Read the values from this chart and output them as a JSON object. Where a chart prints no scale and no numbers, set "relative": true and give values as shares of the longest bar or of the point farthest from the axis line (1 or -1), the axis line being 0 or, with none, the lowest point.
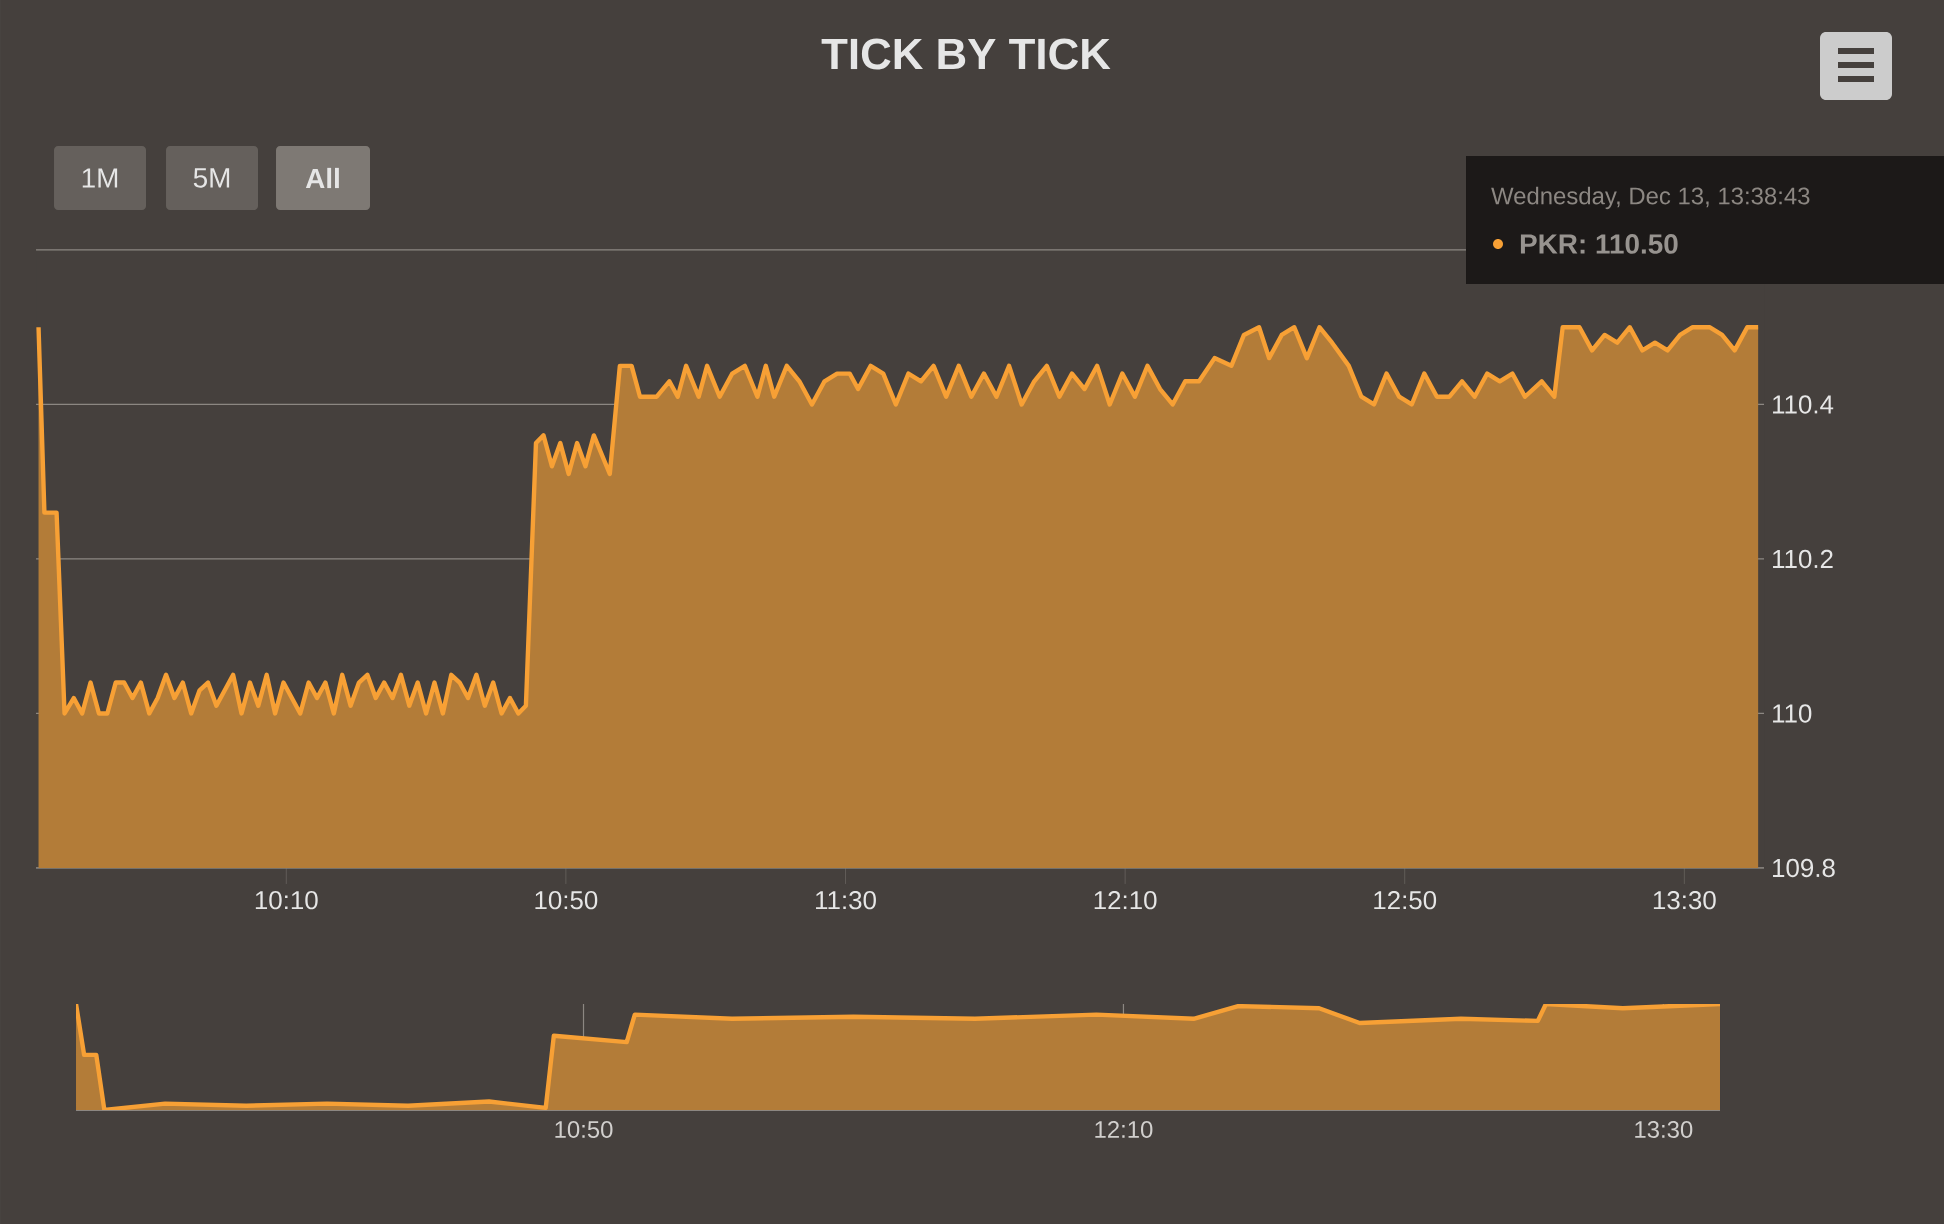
{
  "chart_data": [
    {
      "type": "area",
      "title": "TICK BY TICK",
      "annotations": [
        "1M",
        "5M",
        "All",
        "Wednesday, Dec 13, 13:38:43",
        "PKR: 110.50"
      ],
      "x": [
        9.576,
        9.59,
        9.619,
        9.638,
        9.66,
        9.68,
        9.7,
        9.72,
        9.74,
        9.76,
        9.78,
        9.8,
        9.82,
        9.84,
        9.86,
        9.88,
        9.9,
        9.92,
        9.94,
        9.96,
        9.98,
        10.0,
        10.02,
        10.04,
        10.06,
        10.08,
        10.1,
        10.12,
        10.14,
        10.16,
        10.18,
        10.2,
        10.22,
        10.24,
        10.26,
        10.28,
        10.3,
        10.32,
        10.34,
        10.36,
        10.38,
        10.4,
        10.42,
        10.44,
        10.46,
        10.48,
        10.5,
        10.52,
        10.54,
        10.56,
        10.58,
        10.6,
        10.62,
        10.64,
        10.66,
        10.68,
        10.7,
        10.72,
        10.738,
        10.762,
        10.78,
        10.8,
        10.82,
        10.84,
        10.86,
        10.88,
        10.9,
        10.938,
        10.962,
        10.99,
        11.01,
        11.05,
        11.08,
        11.1,
        11.12,
        11.15,
        11.17,
        11.2,
        11.23,
        11.26,
        11.29,
        11.31,
        11.33,
        11.36,
        11.39,
        11.42,
        11.45,
        11.48,
        11.51,
        11.53,
        11.56,
        11.59,
        11.62,
        11.65,
        11.68,
        11.71,
        11.74,
        11.77,
        11.8,
        11.83,
        11.86,
        11.89,
        11.92,
        11.95,
        11.98,
        12.01,
        12.04,
        12.07,
        12.1,
        12.13,
        12.16,
        12.19,
        12.22,
        12.25,
        12.28,
        12.31,
        12.343,
        12.38,
        12.42,
        12.45,
        12.486,
        12.51,
        12.54,
        12.57,
        12.6,
        12.63,
        12.66,
        12.7,
        12.73,
        12.76,
        12.79,
        12.82,
        12.85,
        12.88,
        12.91,
        12.94,
        12.97,
        13.0,
        13.03,
        13.06,
        13.09,
        13.12,
        13.16,
        13.19,
        13.21,
        13.25,
        13.28,
        13.31,
        13.34,
        13.37,
        13.4,
        13.43,
        13.46,
        13.49,
        13.52,
        13.56,
        13.59,
        13.62,
        13.65,
        13.676
      ],
      "series": [
        {
          "color": "#f7a035",
          "values": [
            110.5,
            110.26,
            110.26,
            110.0,
            110.02,
            110.0,
            110.04,
            110.0,
            110.0,
            110.04,
            110.04,
            110.02,
            110.04,
            110.0,
            110.02,
            110.05,
            110.02,
            110.04,
            110.0,
            110.03,
            110.04,
            110.01,
            110.03,
            110.05,
            110.0,
            110.04,
            110.01,
            110.05,
            110.0,
            110.04,
            110.02,
            110.0,
            110.04,
            110.02,
            110.04,
            110.0,
            110.05,
            110.01,
            110.04,
            110.05,
            110.02,
            110.04,
            110.02,
            110.05,
            110.01,
            110.04,
            110.0,
            110.04,
            110.0,
            110.05,
            110.04,
            110.02,
            110.05,
            110.01,
            110.04,
            110.0,
            110.02,
            110.0,
            110.01,
            110.35,
            110.36,
            110.32,
            110.35,
            110.31,
            110.35,
            110.32,
            110.36,
            110.31,
            110.45,
            110.45,
            110.41,
            110.41,
            110.43,
            110.41,
            110.45,
            110.41,
            110.45,
            110.41,
            110.44,
            110.45,
            110.41,
            110.45,
            110.41,
            110.45,
            110.43,
            110.4,
            110.43,
            110.44,
            110.44,
            110.42,
            110.45,
            110.44,
            110.4,
            110.44,
            110.43,
            110.45,
            110.41,
            110.45,
            110.41,
            110.44,
            110.41,
            110.45,
            110.4,
            110.43,
            110.45,
            110.41,
            110.44,
            110.42,
            110.45,
            110.4,
            110.44,
            110.41,
            110.45,
            110.42,
            110.4,
            110.43,
            110.43,
            110.46,
            110.45,
            110.49,
            110.5,
            110.46,
            110.49,
            110.5,
            110.46,
            110.5,
            110.48,
            110.45,
            110.41,
            110.4,
            110.44,
            110.41,
            110.4,
            110.44,
            110.41,
            110.41,
            110.43,
            110.41,
            110.44,
            110.43,
            110.44,
            110.41,
            110.43,
            110.41,
            110.5,
            110.5,
            110.47,
            110.49,
            110.48,
            110.5,
            110.47,
            110.48,
            110.47,
            110.49,
            110.5,
            110.5,
            110.49,
            110.47,
            110.5,
            110.5
          ]
        }
      ],
      "xlim": [
        9.57,
        13.69
      ],
      "ylim": [
        109.8,
        110.6
      ],
      "xticks": [
        {
          "value": 10.1667,
          "label": "10:10"
        },
        {
          "value": 10.8333,
          "label": "10:50"
        },
        {
          "value": 11.5,
          "label": "11:30"
        },
        {
          "value": 12.1667,
          "label": "12:10"
        },
        {
          "value": 12.8333,
          "label": "12:50"
        },
        {
          "value": 13.5,
          "label": "13:30"
        }
      ],
      "yticks": [
        109.8,
        110,
        110.2,
        110.4,
        {
          "value": 110.6,
          "label": null
        }
      ],
      "grid": "y"
    },
    {
      "type": "area",
      "relative": true,
      "x": [
        9.58,
        9.6,
        9.63,
        9.65,
        9.8,
        10.0,
        10.2,
        10.4,
        10.6,
        10.74,
        10.76,
        10.94,
        10.96,
        11.2,
        11.5,
        11.8,
        12.1,
        12.34,
        12.45,
        12.65,
        12.75,
        13.0,
        13.19,
        13.21,
        13.4,
        13.64
      ],
      "series": [
        {
          "color": "#f7a035",
          "values": [
            1.0,
            0.52,
            0.52,
            0,
            0.06,
            0.04,
            0.06,
            0.04,
            0.08,
            0.02,
            0.7,
            0.64,
            0.9,
            0.86,
            0.88,
            0.86,
            0.9,
            0.86,
            0.98,
            0.96,
            0.82,
            0.86,
            0.84,
            1.0,
            0.96,
            1.0
          ]
        }
      ],
      "xlim": [
        9.58,
        13.64
      ],
      "xticks": [
        {
          "value": 10.8333,
          "label": "10:50"
        },
        {
          "value": 12.1667,
          "label": "12:10"
        },
        {
          "value": 13.5,
          "label": "13:30"
        }
      ],
      "grid": "x",
      "tick_labels": "x"
    }
  ]
}
